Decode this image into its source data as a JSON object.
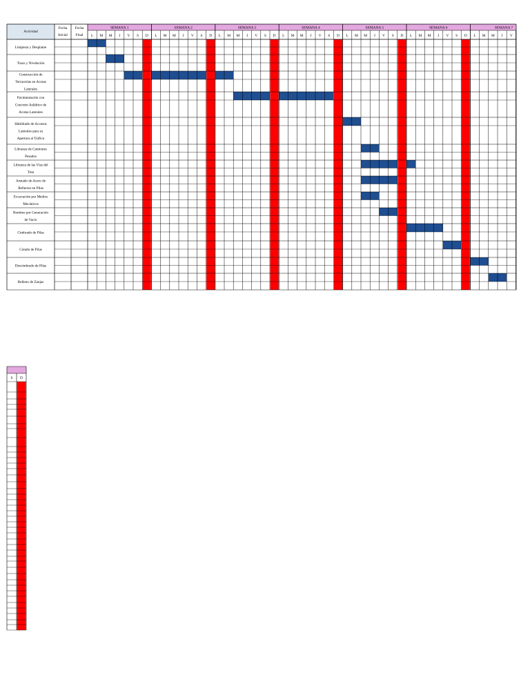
{
  "header": {
    "activity": "Actividad",
    "start": [
      "Fecha",
      "Inicial"
    ],
    "end": [
      "Fecha",
      "Final"
    ],
    "weeks": [
      "SEMANA 1",
      "SEMANA 2",
      "SEMANA 3",
      "SEMANA 4",
      "SEMANA 5",
      "SEMANA 6",
      "SEMANA 7"
    ],
    "days": [
      "L",
      "M",
      "M",
      "J",
      "V",
      "S",
      "D"
    ],
    "second_table_days": [
      "S",
      "D"
    ]
  },
  "colors": {
    "week_header": "#e4a8e0",
    "activity_header": "#dce6f1",
    "task_bar": "#1f4e91",
    "sunday": "#ff0000"
  },
  "tasks": [
    {
      "name": [
        "Limpieza y Desplame"
      ],
      "days": [
        [
          1,
          2
        ]
      ]
    },
    {
      "name": [
        "Trazo y Nivelación"
      ],
      "days": [
        [
          3,
          4
        ]
      ]
    },
    {
      "name": [
        "Construcción de",
        "Terracerías en Acotas",
        "Laterales"
      ],
      "days": [
        [
          5,
          6
        ],
        [
          8,
          13
        ],
        [
          15,
          16
        ]
      ]
    },
    {
      "name": [
        "Pavimentación con",
        "Concreto Asfáltico de",
        "Acotas Laterales"
      ],
      "days": [
        [
          17,
          20
        ],
        [
          22,
          27
        ]
      ]
    },
    {
      "name": [
        "Habilitado de Accesos",
        "Laterales para su",
        "Apertura al Tráfico"
      ],
      "days": [
        [
          29,
          30
        ]
      ]
    },
    {
      "name": [
        "Libranza de Camiones",
        "Pesados"
      ],
      "days": [
        [
          31,
          32
        ]
      ]
    },
    {
      "name": [
        "Libranza de las Vías del",
        "Tren"
      ],
      "days": [
        [
          31,
          34
        ],
        [
          36,
          36
        ]
      ]
    },
    {
      "name": [
        "Armado de Acero de",
        "Refuerzo en Pilas"
      ],
      "days": [
        [
          31,
          34
        ]
      ]
    },
    {
      "name": [
        "Excavación por Medios",
        "Mecánicos"
      ],
      "days": [
        [
          31,
          32
        ]
      ]
    },
    {
      "name": [
        "Bombeo por Generación",
        "de Vacío"
      ],
      "days": [
        [
          33,
          34
        ]
      ]
    },
    {
      "name": [
        "Cimbrado de Pilas"
      ],
      "days": [
        [
          36,
          39
        ]
      ]
    },
    {
      "name": [
        "Colado de Pilas"
      ],
      "days": [
        [
          40,
          41
        ]
      ]
    },
    {
      "name": [
        "Descimbrado de Pilas"
      ],
      "days": [
        [
          43,
          44
        ]
      ]
    },
    {
      "name": [
        "Relleno de Zanjas"
      ],
      "days": [
        [
          45,
          46
        ]
      ]
    }
  ]
}
